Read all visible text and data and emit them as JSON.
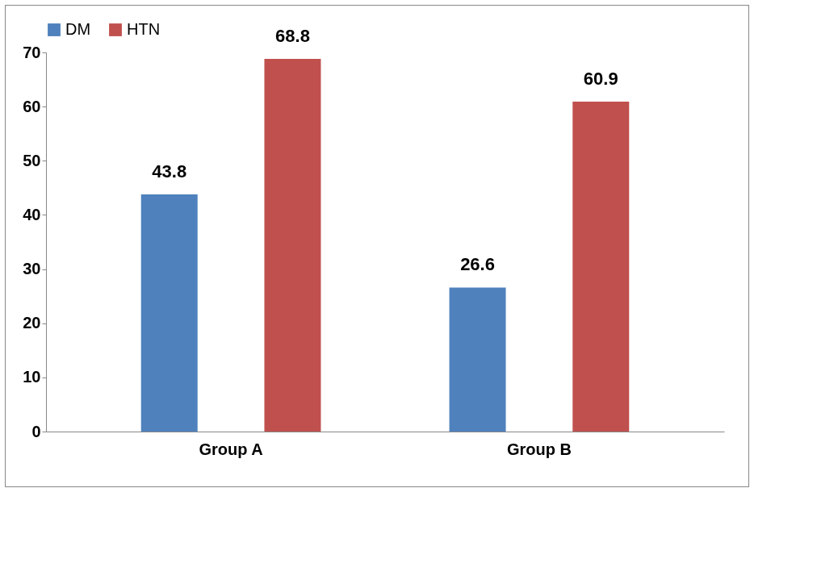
{
  "chart_data": {
    "type": "bar",
    "categories": [
      "Group A",
      "Group B"
    ],
    "series": [
      {
        "name": "DM",
        "color": "#4f81bd",
        "values": [
          43.8,
          26.6
        ]
      },
      {
        "name": "HTN",
        "color": "#c0504d",
        "values": [
          68.8,
          60.9
        ]
      }
    ],
    "ylim": [
      0,
      70
    ],
    "yticks": [
      0,
      10,
      20,
      30,
      40,
      50,
      60,
      70
    ],
    "grid": false,
    "legend": "top",
    "data_labels": true
  }
}
